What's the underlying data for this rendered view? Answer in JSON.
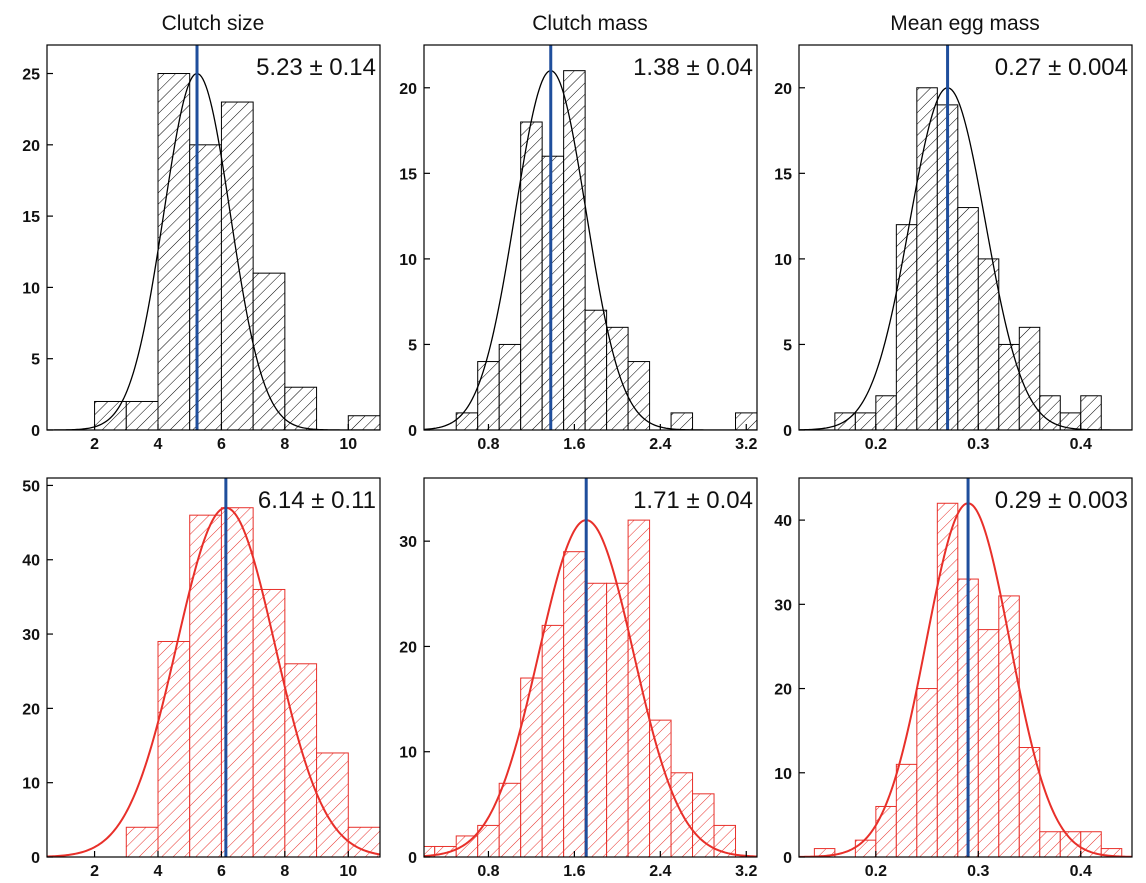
{
  "column_titles": [
    "Clutch size",
    "Clutch mass",
    "Mean egg mass"
  ],
  "colors": {
    "top": "#000000",
    "bottom": "#e8302a",
    "mean_line": "#1f4e9c"
  },
  "chart_data": [
    {
      "type": "bar",
      "title": "Clutch size",
      "row": "top",
      "xlim": [
        0.5,
        11
      ],
      "ylim": [
        0,
        27
      ],
      "xticks": [
        2,
        4,
        6,
        8,
        10
      ],
      "xtick_labels": [
        "2",
        "4",
        "6",
        "8",
        "10"
      ],
      "yticks": [
        0,
        5,
        10,
        15,
        20,
        25
      ],
      "ytick_labels": [
        "0",
        "5",
        "10",
        "15",
        "20",
        "25"
      ],
      "bins": [
        [
          2,
          3,
          2
        ],
        [
          3,
          4,
          2
        ],
        [
          4,
          5,
          25
        ],
        [
          5,
          6,
          20
        ],
        [
          6,
          7,
          23
        ],
        [
          7,
          8,
          11
        ],
        [
          8,
          9,
          3
        ],
        [
          9,
          10,
          0
        ],
        [
          10,
          11,
          1
        ]
      ],
      "mean": 5.23,
      "annotation": "5.23 ± 0.14",
      "fit": {
        "mu": 5.23,
        "sigma": 1.05,
        "peak": 25
      }
    },
    {
      "type": "bar",
      "title": "Clutch mass",
      "row": "top",
      "xlim": [
        0.2,
        3.3
      ],
      "ylim": [
        0,
        22.5
      ],
      "xticks": [
        0.8,
        1.6,
        2.4,
        3.2
      ],
      "xtick_labels": [
        "0.8",
        "1.6",
        "2.4",
        "3.2"
      ],
      "yticks": [
        0,
        5,
        10,
        15,
        20
      ],
      "ytick_labels": [
        "0",
        "5",
        "10",
        "15",
        "20"
      ],
      "bins": [
        [
          0.5,
          0.7,
          1
        ],
        [
          0.7,
          0.9,
          4
        ],
        [
          0.9,
          1.1,
          5
        ],
        [
          1.1,
          1.3,
          18
        ],
        [
          1.3,
          1.5,
          16
        ],
        [
          1.5,
          1.7,
          21
        ],
        [
          1.7,
          1.9,
          7
        ],
        [
          1.9,
          2.1,
          6
        ],
        [
          2.1,
          2.3,
          4
        ],
        [
          2.3,
          2.5,
          0
        ],
        [
          2.5,
          2.7,
          1
        ],
        [
          2.7,
          2.9,
          0
        ],
        [
          2.9,
          3.1,
          0
        ],
        [
          3.1,
          3.3,
          1
        ]
      ],
      "mean": 1.38,
      "annotation": "1.38 ± 0.04",
      "fit": {
        "mu": 1.38,
        "sigma": 0.33,
        "peak": 21
      }
    },
    {
      "type": "bar",
      "title": "Mean egg mass",
      "row": "top",
      "xlim": [
        0.125,
        0.45
      ],
      "ylim": [
        0,
        22.5
      ],
      "xticks": [
        0.2,
        0.3,
        0.4
      ],
      "xtick_labels": [
        "0.2",
        "0.3",
        "0.4"
      ],
      "yticks": [
        0,
        5,
        10,
        15,
        20
      ],
      "ytick_labels": [
        "0",
        "5",
        "10",
        "15",
        "20"
      ],
      "bins": [
        [
          0.16,
          0.18,
          1
        ],
        [
          0.18,
          0.2,
          1
        ],
        [
          0.2,
          0.22,
          2
        ],
        [
          0.22,
          0.24,
          12
        ],
        [
          0.24,
          0.26,
          20
        ],
        [
          0.26,
          0.28,
          19
        ],
        [
          0.28,
          0.3,
          13
        ],
        [
          0.3,
          0.32,
          10
        ],
        [
          0.32,
          0.34,
          5
        ],
        [
          0.34,
          0.36,
          6
        ],
        [
          0.36,
          0.38,
          2
        ],
        [
          0.38,
          0.4,
          1
        ],
        [
          0.4,
          0.42,
          2
        ]
      ],
      "mean": 0.27,
      "annotation": "0.27 ± 0.004",
      "fit": {
        "mu": 0.27,
        "sigma": 0.037,
        "peak": 20
      }
    },
    {
      "type": "bar",
      "title": "",
      "row": "bottom",
      "xlim": [
        0.5,
        11
      ],
      "ylim": [
        0,
        51
      ],
      "xticks": [
        2,
        4,
        6,
        8,
        10
      ],
      "xtick_labels": [
        "2",
        "4",
        "6",
        "8",
        "10"
      ],
      "yticks": [
        0,
        10,
        20,
        30,
        40,
        50
      ],
      "ytick_labels": [
        "0",
        "10",
        "20",
        "30",
        "40",
        "50"
      ],
      "bins": [
        [
          3,
          4,
          4
        ],
        [
          4,
          5,
          29
        ],
        [
          5,
          6,
          46
        ],
        [
          6,
          7,
          47
        ],
        [
          7,
          8,
          36
        ],
        [
          8,
          9,
          26
        ],
        [
          9,
          10,
          14
        ],
        [
          10,
          11,
          4
        ]
      ],
      "mean": 6.14,
      "annotation": "6.14 ± 0.11",
      "fit": {
        "mu": 6.14,
        "sigma": 1.55,
        "peak": 47
      }
    },
    {
      "type": "bar",
      "title": "",
      "row": "bottom",
      "xlim": [
        0.2,
        3.3
      ],
      "ylim": [
        0,
        36
      ],
      "xticks": [
        0.8,
        1.6,
        2.4,
        3.2
      ],
      "xtick_labels": [
        "0.8",
        "1.6",
        "2.4",
        "3.2"
      ],
      "yticks": [
        0,
        10,
        20,
        30
      ],
      "ytick_labels": [
        "0",
        "10",
        "20",
        "30"
      ],
      "bins": [
        [
          0.2,
          0.3,
          1
        ],
        [
          0.3,
          0.5,
          1
        ],
        [
          0.5,
          0.7,
          2
        ],
        [
          0.7,
          0.9,
          3
        ],
        [
          0.9,
          1.1,
          7
        ],
        [
          1.1,
          1.3,
          17
        ],
        [
          1.3,
          1.5,
          22
        ],
        [
          1.5,
          1.7,
          29
        ],
        [
          1.7,
          1.9,
          26
        ],
        [
          1.9,
          2.1,
          26
        ],
        [
          2.1,
          2.3,
          32
        ],
        [
          2.3,
          2.5,
          13
        ],
        [
          2.5,
          2.7,
          8
        ],
        [
          2.7,
          2.9,
          6
        ],
        [
          2.9,
          3.1,
          3
        ]
      ],
      "mean": 1.71,
      "annotation": "1.71 ± 0.04",
      "fit": {
        "mu": 1.71,
        "sigma": 0.44,
        "peak": 32
      }
    },
    {
      "type": "bar",
      "title": "",
      "row": "bottom",
      "xlim": [
        0.125,
        0.45
      ],
      "ylim": [
        0,
        45
      ],
      "xticks": [
        0.2,
        0.3,
        0.4
      ],
      "xtick_labels": [
        "0.2",
        "0.3",
        "0.4"
      ],
      "yticks": [
        0,
        10,
        20,
        30,
        40
      ],
      "ytick_labels": [
        "0",
        "10",
        "20",
        "30",
        "40"
      ],
      "bins": [
        [
          0.14,
          0.16,
          1
        ],
        [
          0.16,
          0.18,
          0
        ],
        [
          0.18,
          0.2,
          2
        ],
        [
          0.2,
          0.22,
          6
        ],
        [
          0.22,
          0.24,
          11
        ],
        [
          0.24,
          0.26,
          20
        ],
        [
          0.26,
          0.28,
          42
        ],
        [
          0.28,
          0.3,
          33
        ],
        [
          0.3,
          0.32,
          27
        ],
        [
          0.32,
          0.34,
          31
        ],
        [
          0.34,
          0.36,
          13
        ],
        [
          0.36,
          0.38,
          3
        ],
        [
          0.38,
          0.4,
          3
        ],
        [
          0.4,
          0.42,
          3
        ],
        [
          0.42,
          0.44,
          1
        ]
      ],
      "mean": 0.29,
      "annotation": "0.29 ± 0.003",
      "fit": {
        "mu": 0.29,
        "sigma": 0.041,
        "peak": 42
      }
    }
  ]
}
